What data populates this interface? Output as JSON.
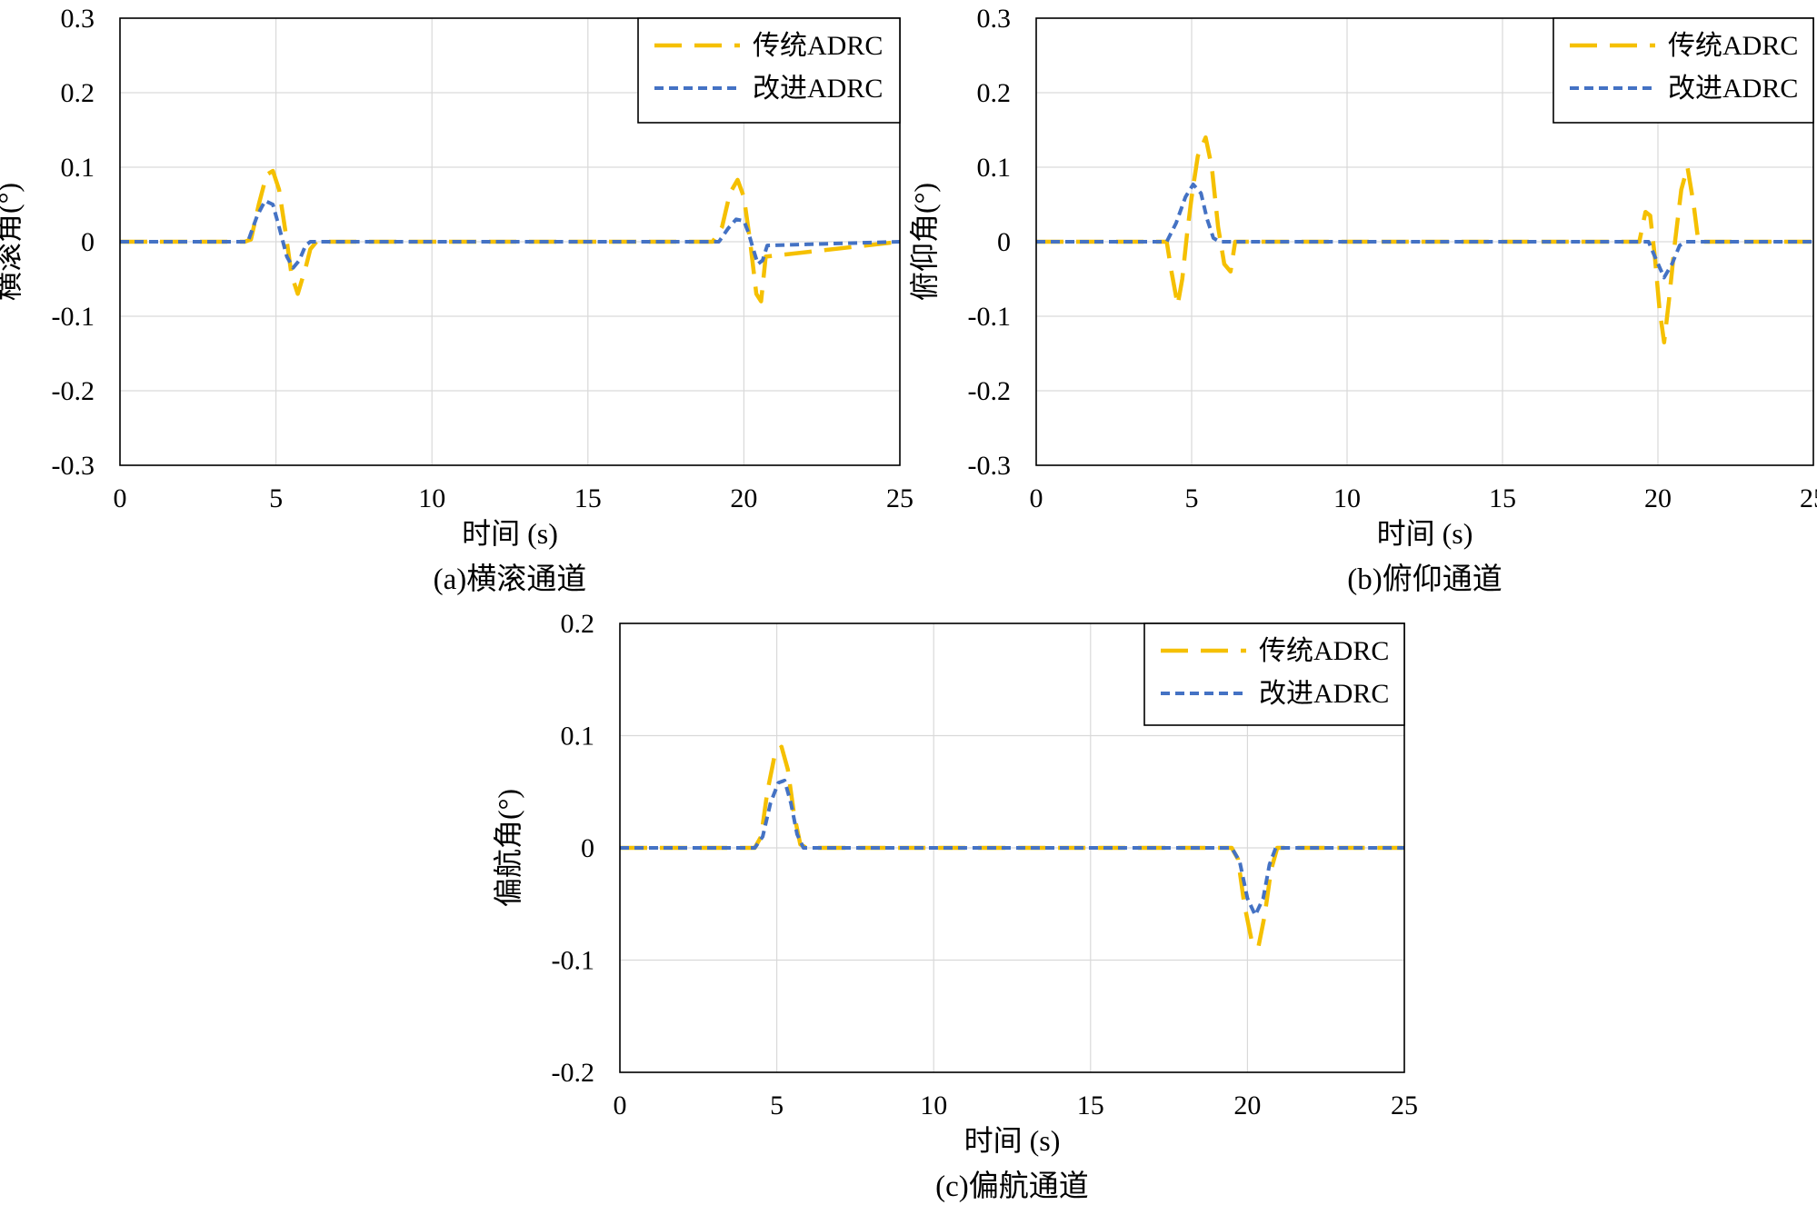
{
  "chart_data": [
    {
      "type": "line",
      "caption": "(a)横滚通道",
      "xlabel": "时间 (s)",
      "ylabel": "横滚角(°)",
      "xlim": [
        0,
        25
      ],
      "ylim": [
        -0.3,
        0.3
      ],
      "xticks": [
        "0",
        "5",
        "10",
        "15",
        "20",
        "25"
      ],
      "yticks": [
        "0.3",
        "0.2",
        "0.1",
        "0",
        "-0.1",
        "-0.2",
        "-0.3"
      ],
      "grid": true,
      "legend_position": "top-right",
      "series": [
        {
          "name": "传统ADRC",
          "color": "#F5C000",
          "dash": "long-dash",
          "x": [
            0,
            4.0,
            4.2,
            4.45,
            4.7,
            4.9,
            5.1,
            5.3,
            5.5,
            5.7,
            5.95,
            6.1,
            6.3,
            19.0,
            19.3,
            19.55,
            19.8,
            20.0,
            20.2,
            20.4,
            20.55,
            20.7,
            25
          ],
          "y": [
            0,
            0,
            0.003,
            0.05,
            0.09,
            0.095,
            0.07,
            0.015,
            -0.045,
            -0.07,
            -0.035,
            -0.01,
            0,
            0,
            0.02,
            0.065,
            0.083,
            0.06,
            0.0,
            -0.07,
            -0.08,
            -0.02,
            0
          ]
        },
        {
          "name": "改进ADRC",
          "color": "#4472C4",
          "dash": "short-dash",
          "x": [
            0,
            4.1,
            4.4,
            4.65,
            4.9,
            5.1,
            5.35,
            5.55,
            5.75,
            5.95,
            6.1,
            19.2,
            19.5,
            19.75,
            20.0,
            20.15,
            20.3,
            20.45,
            20.6,
            20.75,
            25
          ],
          "y": [
            0,
            0,
            0.035,
            0.055,
            0.05,
            0.02,
            -0.02,
            -0.035,
            -0.025,
            -0.005,
            0,
            0,
            0.018,
            0.03,
            0.028,
            0.012,
            -0.01,
            -0.03,
            -0.025,
            -0.005,
            0
          ]
        }
      ]
    },
    {
      "type": "line",
      "caption": "(b)俯仰通道",
      "xlabel": "时间 (s)",
      "ylabel": "俯仰角(°)",
      "xlim": [
        0,
        25
      ],
      "ylim": [
        -0.3,
        0.3
      ],
      "xticks": [
        "0",
        "5",
        "10",
        "15",
        "20",
        "25"
      ],
      "yticks": [
        "0.3",
        "0.2",
        "0.1",
        "0",
        "-0.1",
        "-0.2",
        "-0.3"
      ],
      "grid": true,
      "legend_position": "top-right",
      "series": [
        {
          "name": "传统ADRC",
          "color": "#F5C000",
          "dash": "long-dash",
          "x": [
            0,
            4.2,
            4.35,
            4.55,
            4.7,
            4.85,
            5.0,
            5.2,
            5.45,
            5.65,
            5.85,
            6.05,
            6.25,
            6.4,
            19.4,
            19.6,
            19.75,
            19.9,
            20.05,
            20.2,
            20.35,
            20.55,
            20.75,
            20.95,
            21.15,
            21.3,
            25
          ],
          "y": [
            0,
            0,
            -0.04,
            -0.085,
            -0.05,
            0.01,
            0.06,
            0.115,
            0.14,
            0.1,
            0.02,
            -0.03,
            -0.04,
            0,
            0,
            0.04,
            0.035,
            -0.02,
            -0.09,
            -0.135,
            -0.08,
            0.0,
            0.07,
            0.1,
            0.05,
            0.0,
            0
          ]
        },
        {
          "name": "改进ADRC",
          "color": "#4472C4",
          "dash": "short-dash",
          "x": [
            0,
            3.9,
            4.2,
            4.5,
            4.8,
            5.05,
            5.3,
            5.5,
            5.7,
            5.9,
            19.4,
            19.7,
            19.9,
            20.2,
            20.45,
            20.7,
            20.9,
            25
          ],
          "y": [
            0,
            0,
            0.0,
            0.025,
            0.06,
            0.077,
            0.065,
            0.03,
            0.005,
            0,
            0,
            0.0,
            -0.02,
            -0.048,
            -0.03,
            -0.005,
            0,
            0
          ]
        }
      ]
    },
    {
      "type": "line",
      "caption": "(c)偏航通道",
      "xlabel": "时间 (s)",
      "ylabel": "偏航角(°)",
      "xlim": [
        0,
        25
      ],
      "ylim": [
        -0.2,
        0.2
      ],
      "xticks": [
        "0",
        "5",
        "10",
        "15",
        "20",
        "25"
      ],
      "yticks": [
        "0.2",
        "0.1",
        "0",
        "-0.1",
        "-0.2"
      ],
      "grid": true,
      "legend_position": "top-right",
      "series": [
        {
          "name": "传统ADRC",
          "color": "#F5C000",
          "dash": "long-dash",
          "x": [
            0,
            4.3,
            4.5,
            4.7,
            4.95,
            5.15,
            5.35,
            5.55,
            5.75,
            5.95,
            19.5,
            19.7,
            19.9,
            20.15,
            20.35,
            20.55,
            20.75,
            20.95,
            25
          ],
          "y": [
            0,
            0,
            0.01,
            0.05,
            0.085,
            0.09,
            0.07,
            0.03,
            0.003,
            0,
            0,
            -0.01,
            -0.05,
            -0.085,
            -0.088,
            -0.06,
            -0.02,
            0,
            0
          ]
        },
        {
          "name": "改进ADRC",
          "color": "#4472C4",
          "dash": "short-dash",
          "x": [
            0,
            4.3,
            4.55,
            4.8,
            5.05,
            5.25,
            5.45,
            5.65,
            5.85,
            19.5,
            19.75,
            20.0,
            20.25,
            20.5,
            20.7,
            20.9,
            25
          ],
          "y": [
            0,
            0,
            0.01,
            0.04,
            0.058,
            0.06,
            0.04,
            0.012,
            0,
            0,
            -0.012,
            -0.045,
            -0.06,
            -0.045,
            -0.015,
            0,
            0
          ]
        }
      ]
    }
  ]
}
